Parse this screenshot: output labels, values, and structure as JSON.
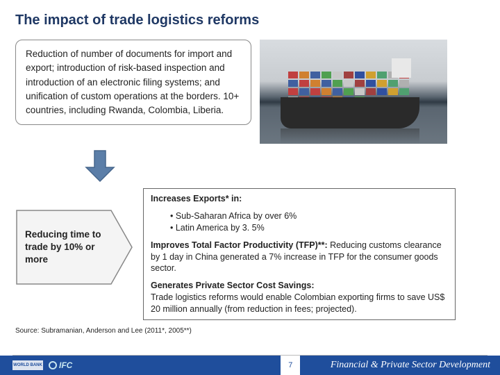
{
  "title": "The impact of trade logistics reforms",
  "intro_box": "Reduction of number of documents for import and export; introduction of risk-based inspection and introduction of an electronic filing systems; and unification of custom operations at the borders. 10+ countries, including Rwanda, Colombia, Liberia.",
  "arrow": {
    "fill": "#5b7ea8",
    "stroke": "#46668c"
  },
  "chevron": {
    "text": "Reducing time to trade by 10% or more",
    "fill": "#f4f4f4",
    "stroke": "#888888"
  },
  "results": {
    "exports_heading": "Increases Exports* in:",
    "exports_items": [
      "Sub-Saharan Africa by over 6%",
      "Latin America by 3. 5%"
    ],
    "tfp_heading": "Improves Total Factor Productivity (TFP)**:",
    "tfp_text": " Reducing customs clearance by 1 day in China generated a 7% increase in TFP for the consumer goods sector.",
    "savings_heading": "Generates Private Sector Cost Savings:",
    "savings_text": "Trade logistics reforms would enable Colombian exporting firms to save US$ 20 million annually (from reduction in fees; projected)."
  },
  "source": "Source:  Subramanian, Anderson and Lee (2011*,  2005**)",
  "footer": {
    "background": "#1f4e9c",
    "wb_label": "WORLD BANK",
    "ifc_label": "IFC",
    "page_number": "7",
    "right_text": "Financial & Private Sector Development"
  },
  "ship": {
    "container_colors": [
      "#c04040",
      "#d08030",
      "#4060a0",
      "#50a050",
      "#c8c8c8",
      "#a04040",
      "#3050a0",
      "#d0a030",
      "#50a070",
      "#b0b0b0",
      "#c04040",
      "#4060a0"
    ]
  }
}
